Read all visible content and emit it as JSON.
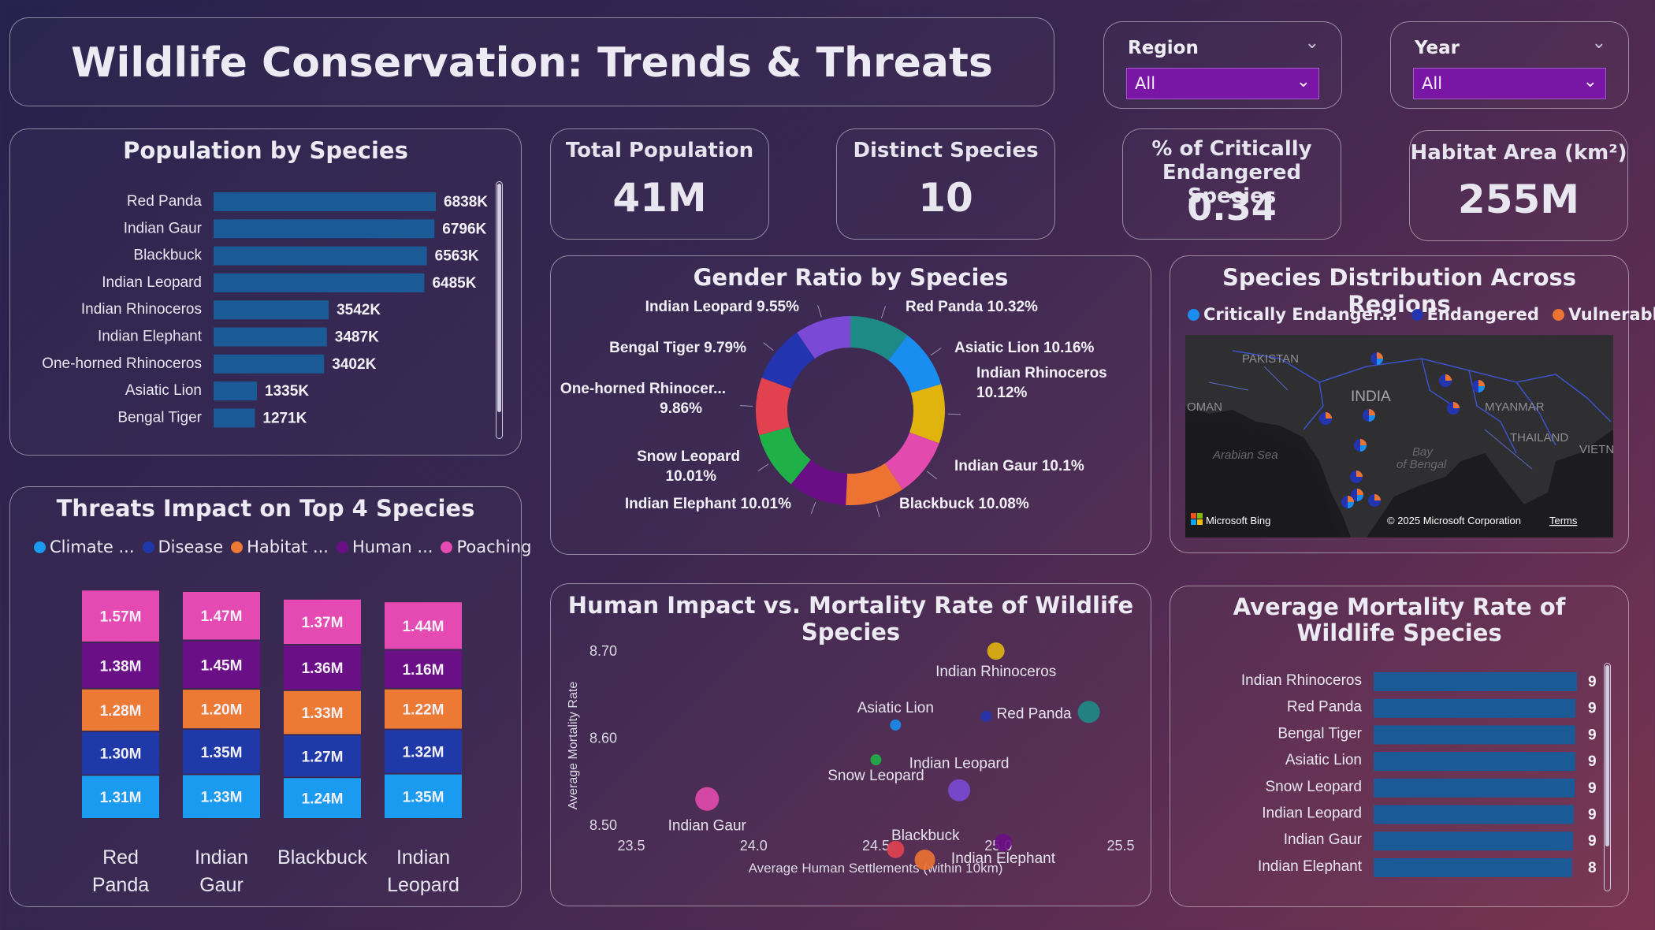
{
  "header": {
    "title": "Wildlife Conservation: Trends & Threats"
  },
  "slicers": {
    "region": {
      "label": "Region",
      "value": "All"
    },
    "year": {
      "label": "Year",
      "value": "All"
    }
  },
  "kpis": [
    {
      "label": "Total Population",
      "value": "41M"
    },
    {
      "label": "Distinct Species",
      "value": "10"
    },
    {
      "label": "% of Critically Endangered Species",
      "value": "0.34"
    },
    {
      "label": "Habitat Area (km²)",
      "value": "255M"
    }
  ],
  "population_chart": {
    "title": "Population by Species",
    "bar_color": "#1a5a96",
    "chart_data": {
      "type": "bar",
      "orientation": "horizontal",
      "categories": [
        "Red Panda",
        "Indian Gaur",
        "Blackbuck",
        "Indian Leopard",
        "Indian Rhinoceros",
        "Indian Elephant",
        "One-horned Rhinoceros",
        "Asiatic Lion",
        "Bengal Tiger"
      ],
      "values": [
        6838,
        6796,
        6563,
        6485,
        3542,
        3487,
        3402,
        1335,
        1271
      ],
      "data_labels": [
        "6838K",
        "6796K",
        "6563K",
        "6485K",
        "3542K",
        "3487K",
        "3402K",
        "1335K",
        "1271K"
      ],
      "unit": "K"
    }
  },
  "threats_chart": {
    "title": "Threats Impact on Top 4 Species",
    "chart_data": {
      "type": "bar",
      "stacked": true,
      "categories": [
        "Red Panda",
        "Indian Gaur",
        "Blackbuck",
        "Indian Leopard"
      ],
      "series": [
        {
          "name": "Climate ...",
          "color": "#1a9bf0",
          "values": [
            1.31,
            1.33,
            1.24,
            1.35
          ],
          "labels": [
            "1.31M",
            "1.33M",
            "1.24M",
            "1.35M"
          ]
        },
        {
          "name": "Disease",
          "color": "#1f3aa8",
          "values": [
            1.3,
            1.35,
            1.27,
            1.32
          ],
          "labels": [
            "1.30M",
            "1.35M",
            "1.27M",
            "1.32M"
          ]
        },
        {
          "name": "Habitat ...",
          "color": "#ec7a35",
          "values": [
            1.28,
            1.2,
            1.33,
            1.22
          ],
          "labels": [
            "1.28M",
            "1.20M",
            "1.33M",
            "1.22M"
          ]
        },
        {
          "name": "Human ...",
          "color": "#6b0f86",
          "values": [
            1.38,
            1.45,
            1.36,
            1.16
          ],
          "labels": [
            "1.38M",
            "1.45M",
            "1.36M",
            "1.16M"
          ]
        },
        {
          "name": "Poaching",
          "color": "#e54ab3",
          "values": [
            1.57,
            1.47,
            1.37,
            1.44
          ],
          "labels": [
            "1.57M",
            "1.47M",
            "1.37M",
            "1.44M"
          ]
        }
      ]
    }
  },
  "gender_chart": {
    "title": "Gender Ratio by Species",
    "chart_data": {
      "type": "pie",
      "donut": true,
      "slices": [
        {
          "name": "Red Panda",
          "value": 10.32,
          "label": "Red Panda 10.32%",
          "color": "#1e8a88"
        },
        {
          "name": "Asiatic Lion",
          "value": 10.16,
          "label": "Asiatic Lion 10.16%",
          "color": "#1a8ef0"
        },
        {
          "name": "Indian Rhinoceros",
          "value": 10.12,
          "label": "Indian Rhinoceros 10.12%",
          "color": "#e0b40d"
        },
        {
          "name": "Indian Gaur",
          "value": 10.1,
          "label": "Indian Gaur 10.1%",
          "color": "#e34aae"
        },
        {
          "name": "Blackbuck",
          "value": 10.08,
          "label": "Blackbuck 10.08%",
          "color": "#ec7332"
        },
        {
          "name": "Indian Elephant",
          "value": 10.01,
          "label": "Indian Elephant 10.01%",
          "color": "#6a0e86"
        },
        {
          "name": "Snow Leopard",
          "value": 10.01,
          "label": "Snow Leopard 10.01%",
          "color": "#1fb048"
        },
        {
          "name": "One-horned Rhinoceros",
          "value": 9.86,
          "label": "One-horned Rhinocer... 9.86%",
          "color": "#e2424f"
        },
        {
          "name": "Bengal Tiger",
          "value": 9.79,
          "label": "Bengal Tiger 9.79%",
          "color": "#2234b0"
        },
        {
          "name": "Indian Leopard",
          "value": 9.55,
          "label": "Indian Leopard 9.55%",
          "color": "#7a4ad6"
        }
      ]
    }
  },
  "map_visual": {
    "title": "Species Distribution Across Regions",
    "legend": [
      {
        "name": "Critically Endanger...",
        "color": "#1a8ef0"
      },
      {
        "name": "Endangered",
        "color": "#2234b0"
      },
      {
        "name": "Vulnerable",
        "color": "#ec7332"
      }
    ],
    "place_labels": {
      "pakistan": "PAKISTAN",
      "india": "INDIA",
      "oman": "OMAN",
      "myanmar": "MYANMAR",
      "thailand": "THAILAND",
      "vietnam": "VIETNA",
      "arabian_sea": "Arabian Sea",
      "bay_of_bengal_1": "Bay",
      "bay_of_bengal_2": "of Bengal"
    },
    "attribution": {
      "provider": "Microsoft Bing",
      "copyright": "© 2025 Microsoft Corporation",
      "terms": "Terms"
    }
  },
  "scatter_chart": {
    "title": "Human Impact vs. Mortality Rate of Wildlife Species",
    "chart_data": {
      "type": "scatter",
      "xlabel": "Average Human Settlements (within 10km)",
      "ylabel": "Average Mortality Rate",
      "xlim": [
        23.5,
        25.5
      ],
      "ylim": [
        8.46,
        8.72
      ],
      "xticks": [
        "23.5",
        "24.0",
        "24.5",
        "25.0",
        "25.5"
      ],
      "yticks": [
        "8.50",
        "8.60",
        "8.70"
      ],
      "points": [
        {
          "name": "Indian Rhinoceros",
          "x": 24.99,
          "y": 8.7,
          "size": 11,
          "color": "#e0b40d"
        },
        {
          "name": "Red Panda",
          "x": 25.37,
          "y": 8.63,
          "size": 14,
          "color": "#1e8a88"
        },
        {
          "name": "Asiatic Lion",
          "x": 24.58,
          "y": 8.615,
          "size": 7,
          "color": "#1a8ef0"
        },
        {
          "name": "",
          "x": 24.95,
          "y": 8.625,
          "size": 7,
          "color": "#2234b0"
        },
        {
          "name": "Indian Leopard",
          "x": 24.84,
          "y": 8.54,
          "size": 14,
          "color": "#7a4ad6"
        },
        {
          "name": "Snow Leopard",
          "x": 24.5,
          "y": 8.575,
          "size": 7,
          "color": "#1fb048"
        },
        {
          "name": "Indian Gaur",
          "x": 23.81,
          "y": 8.53,
          "size": 15,
          "color": "#e34aae"
        },
        {
          "name": "Blackbuck",
          "x": 24.58,
          "y": 8.472,
          "size": 11,
          "color": "#e2424f"
        },
        {
          "name": "Indian Elephant",
          "x": 25.02,
          "y": 8.48,
          "size": 11,
          "color": "#6a0e86"
        },
        {
          "name": "",
          "x": 24.7,
          "y": 8.46,
          "size": 13,
          "color": "#ec7332"
        }
      ]
    }
  },
  "mortality_chart": {
    "title": "Average Mortality Rate of Wildlife Species",
    "bar_color": "#1a5a96",
    "chart_data": {
      "type": "bar",
      "orientation": "horizontal",
      "categories": [
        "Indian Rhinoceros",
        "Red Panda",
        "Bengal Tiger",
        "Asiatic Lion",
        "Snow Leopard",
        "Indian Leopard",
        "Indian Gaur",
        "Indian Elephant"
      ],
      "values": [
        8.7,
        8.63,
        8.62,
        8.62,
        8.6,
        8.56,
        8.53,
        8.49
      ],
      "data_labels": [
        "9",
        "9",
        "9",
        "9",
        "9",
        "9",
        "9",
        "8"
      ]
    }
  }
}
